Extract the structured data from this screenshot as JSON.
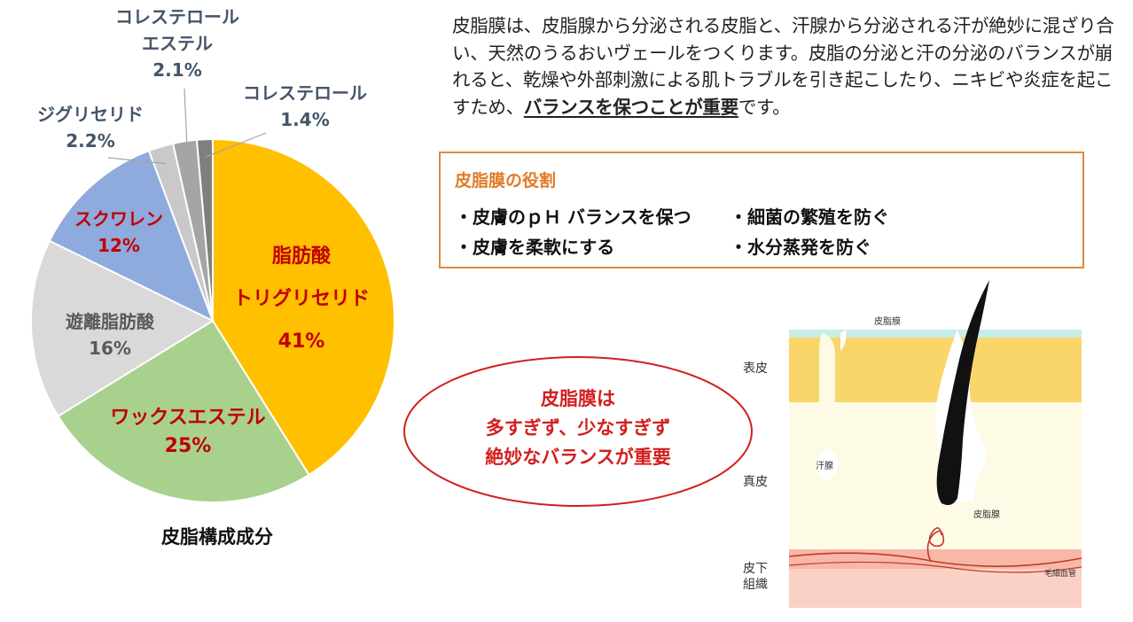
{
  "chart_data": {
    "type": "pie",
    "title": "皮脂構成成分",
    "slices": [
      {
        "label": "脂肪酸\nトリグリセリド",
        "value": 41,
        "value_label": "41%",
        "color": "#ffc000",
        "text_color": "#c00000"
      },
      {
        "label": "ワックスエステル",
        "value": 25,
        "value_label": "25%",
        "color": "#a9d18e",
        "text_color": "#c00000"
      },
      {
        "label": "遊離脂肪酸",
        "value": 16,
        "value_label": "16%",
        "color": "#d9d9d9",
        "text_color": "#595959"
      },
      {
        "label": "スクワレン",
        "value": 12,
        "value_label": "12%",
        "color": "#8faadc",
        "text_color": "#c00000"
      },
      {
        "label": "ジグリセリド",
        "value": 2.2,
        "value_label": "2.2%",
        "color": "#c9c9c9",
        "text_color": "#44546a"
      },
      {
        "label": "コレステロール\nエステル",
        "value": 2.1,
        "value_label": "2.1%",
        "color": "#a5a5a5",
        "text_color": "#44546a"
      },
      {
        "label": "コレステロール",
        "value": 1.4,
        "value_label": "1.4%",
        "color": "#7f7f7f",
        "text_color": "#44546a"
      }
    ]
  },
  "intro": {
    "text_before": "皮脂膜は、皮脂腺から分泌される皮脂と、汗腺から分泌される汗が絶妙に混ざり合い、天然のうるおいヴェールをつくります。皮脂の分泌と汗の分泌のバランスが崩れると、乾燥や外部刺激による肌トラブルを引き起こしたり、ニキビや炎症を起こすため、",
    "emphasis": "バランスを保つことが重要",
    "text_after": "です。"
  },
  "roles": {
    "title": "皮脂膜の役割",
    "items": [
      "・皮膚のｐＨ バランスを保つ",
      "・細菌の繁殖を防ぐ",
      "・皮膚を柔軟にする",
      "・水分蒸発を防ぐ"
    ]
  },
  "callout": {
    "lines": [
      "皮脂膜は",
      "多すぎず、少なすぎず",
      "絶妙なバランスが重要"
    ]
  },
  "skin_diagram": {
    "sebum_film": "皮脂膜",
    "epidermis": "表皮",
    "sweat_gland": "汗腺",
    "dermis": "真皮",
    "sebaceous_gland": "皮脂腺",
    "subcutaneous": "皮下\n組織",
    "capillary": "毛細血管"
  }
}
